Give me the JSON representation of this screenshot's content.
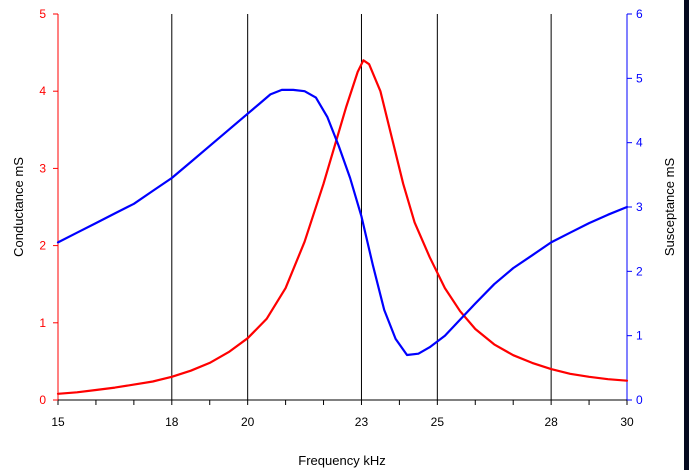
{
  "chart_data": {
    "type": "line",
    "xlabel": "Frequency kHz",
    "ylabel_left": "Conductance mS",
    "ylabel_right": "Susceptance mS",
    "x_tick_labels": [
      "15",
      "18",
      "20",
      "23",
      "25",
      "28",
      "30"
    ],
    "y_left_tick_labels": [
      "0",
      "1",
      "2",
      "3",
      "4",
      "5"
    ],
    "y_right_tick_labels": [
      "0",
      "1",
      "2",
      "3",
      "4",
      "5",
      "6"
    ],
    "xlim": [
      15,
      30
    ],
    "ylim_left": [
      0,
      5
    ],
    "ylim_right": [
      0,
      6
    ],
    "grid": "vertical major lines at every 2nd tick",
    "colors": {
      "conductance": "#ff0000",
      "susceptance": "#0000ff",
      "left_axis": "#ff0000",
      "right_axis": "#0000ff",
      "gridline": "#000000"
    },
    "series": [
      {
        "axis": "left",
        "color": "#ff0000",
        "x": [
          15,
          15.5,
          16,
          16.5,
          17,
          17.5,
          18,
          18.5,
          19,
          19.5,
          20,
          20.5,
          21,
          21.5,
          22,
          22.3,
          22.6,
          22.9,
          23.05,
          23.2,
          23.5,
          23.8,
          24.1,
          24.4,
          24.8,
          25.2,
          25.6,
          26,
          26.5,
          27,
          27.5,
          28,
          28.5,
          29,
          29.5,
          30
        ],
        "y": [
          0.08,
          0.1,
          0.13,
          0.16,
          0.2,
          0.24,
          0.3,
          0.38,
          0.48,
          0.62,
          0.8,
          1.05,
          1.45,
          2.05,
          2.8,
          3.3,
          3.8,
          4.25,
          4.4,
          4.35,
          4.0,
          3.4,
          2.8,
          2.3,
          1.85,
          1.45,
          1.15,
          0.92,
          0.72,
          0.58,
          0.48,
          0.4,
          0.34,
          0.3,
          0.27,
          0.25
        ]
      },
      {
        "axis": "right",
        "color": "#0000ff",
        "x": [
          15,
          15.5,
          16,
          16.5,
          17,
          17.5,
          18,
          18.5,
          19,
          19.5,
          20,
          20.3,
          20.6,
          20.9,
          21.2,
          21.5,
          21.8,
          22.1,
          22.4,
          22.7,
          23,
          23.3,
          23.6,
          23.9,
          24.2,
          24.5,
          24.8,
          25.2,
          25.6,
          26,
          26.5,
          27,
          27.5,
          28,
          28.5,
          29,
          29.5,
          30
        ],
        "y": [
          2.45,
          2.6,
          2.75,
          2.9,
          3.05,
          3.25,
          3.45,
          3.7,
          3.95,
          4.2,
          4.45,
          4.6,
          4.75,
          4.82,
          4.82,
          4.8,
          4.7,
          4.4,
          3.95,
          3.45,
          2.85,
          2.1,
          1.4,
          0.95,
          0.7,
          0.72,
          0.82,
          1.0,
          1.25,
          1.5,
          1.8,
          2.05,
          2.25,
          2.45,
          2.6,
          2.75,
          2.88,
          3.0
        ]
      }
    ]
  }
}
